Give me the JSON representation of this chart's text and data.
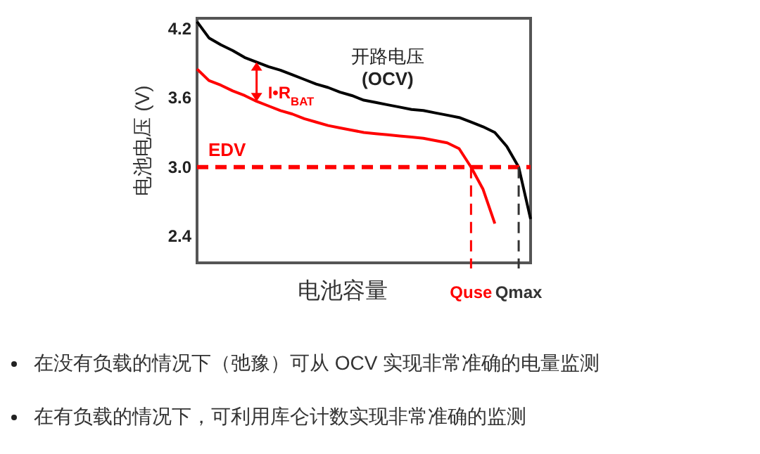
{
  "chart_data": {
    "type": "line",
    "ylabel": "电池电压 (V)",
    "xlabel": "电池容量",
    "ylim": [
      2.17,
      4.29
    ],
    "yticks": [
      {
        "value": 2.4,
        "label": "2.4"
      },
      {
        "value": 3,
        "label": "3.0"
      },
      {
        "value": 3.6,
        "label": "3.6"
      },
      {
        "value": 4.2,
        "label": "4.2"
      }
    ],
    "grid": false,
    "categories": [
      null,
      null,
      null,
      null,
      null,
      null,
      null,
      null,
      null,
      null,
      null,
      null,
      null,
      null,
      null,
      null,
      null,
      null,
      null,
      null,
      null,
      null,
      null,
      "Quse",
      null,
      null,
      null,
      "Qmax",
      null
    ],
    "series": [
      {
        "name": "开路电压 (OCV)",
        "color": "#000000",
        "values": [
          4.26,
          4.12,
          4.06,
          4.01,
          3.95,
          3.91,
          3.87,
          3.84,
          3.8,
          3.76,
          3.72,
          3.69,
          3.65,
          3.62,
          3.58,
          3.56,
          3.54,
          3.52,
          3.5,
          3.49,
          3.47,
          3.45,
          3.43,
          3.39,
          3.35,
          3.3,
          3.18,
          3.0,
          2.55
        ]
      },
      {
        "color": "#ff0000",
        "values": [
          3.85,
          3.75,
          3.71,
          3.66,
          3.62,
          3.57,
          3.53,
          3.49,
          3.46,
          3.42,
          3.39,
          3.36,
          3.34,
          3.32,
          3.3,
          3.29,
          3.28,
          3.27,
          3.26,
          3.25,
          3.23,
          3.21,
          3.16,
          3.0,
          2.81,
          2.51,
          null,
          null,
          null
        ]
      }
    ],
    "ref_lines": [
      {
        "axis": "y",
        "value": 3.0,
        "label": "EDV",
        "color": "#ff0000",
        "line_style": "dashed"
      },
      {
        "axis": "x",
        "value": "Quse",
        "color": "#ff0000",
        "line_style": "dashed"
      },
      {
        "axis": "x",
        "value": "Qmax",
        "color": "#333333",
        "line_style": "dashed"
      }
    ],
    "annotations": [
      "I•R$_{BAT}$",
      "在没有负载的情况下（弛豫）可从 OCV 实现非常准确的电量监测",
      "在有负载的情况下，可利用库仑计数实现非常准确的监测"
    ]
  }
}
